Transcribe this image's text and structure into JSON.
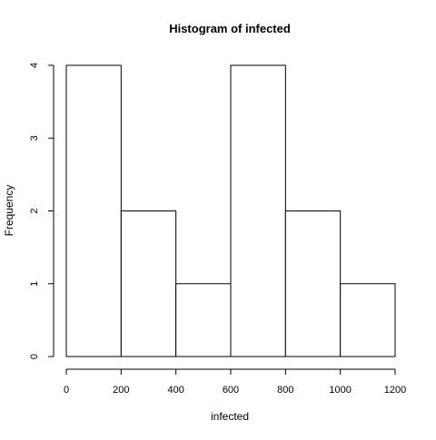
{
  "chart_data": {
    "type": "bar",
    "title": "Histogram of infected",
    "xlabel": "infected",
    "ylabel": "Frequency",
    "bins": [
      {
        "start": 0,
        "end": 200,
        "count": 4
      },
      {
        "start": 200,
        "end": 400,
        "count": 2
      },
      {
        "start": 400,
        "end": 600,
        "count": 1
      },
      {
        "start": 600,
        "end": 800,
        "count": 4
      },
      {
        "start": 800,
        "end": 1000,
        "count": 2
      },
      {
        "start": 1000,
        "end": 1200,
        "count": 1
      }
    ],
    "xlim": [
      0,
      1200
    ],
    "ylim": [
      0,
      4
    ],
    "xticks": [
      0,
      200,
      400,
      600,
      800,
      1000,
      1200
    ],
    "yticks": [
      0,
      1,
      2,
      3,
      4
    ],
    "grid": false,
    "colors": {
      "bar_fill": "#ffffff",
      "bar_stroke": "#000000",
      "axis": "#000000"
    }
  }
}
